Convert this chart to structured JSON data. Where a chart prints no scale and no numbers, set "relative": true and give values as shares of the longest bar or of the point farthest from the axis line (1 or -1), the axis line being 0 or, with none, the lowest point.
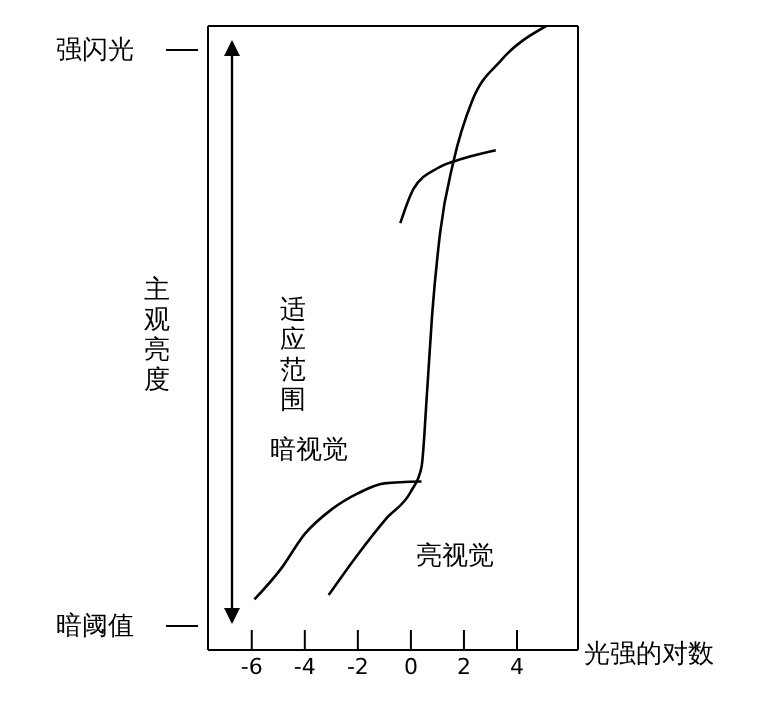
{
  "chart_data": {
    "type": "line",
    "relative": true,
    "xlabel": "光强的对数",
    "ylabel": "主观亮度",
    "xlim": [
      -7.65,
      6.3
    ],
    "xticks": [
      -6,
      -4,
      -2,
      0,
      2,
      4
    ],
    "marker": "none",
    "line_style": "solid",
    "annotations": [
      "强闪光",
      "暗阈值",
      "暗视觉",
      "亮视觉",
      "适应范围"
    ],
    "series": [
      {
        "color": "#000000",
        "x": [
          -3.1,
          -2.0,
          -0.9,
          0,
          0.4,
          0.6,
          0.8,
          1.1,
          1.6,
          2.3,
          3.4,
          5.1
        ],
        "values": [
          0.088,
          0.153,
          0.212,
          0.254,
          0.293,
          0.407,
          0.537,
          0.668,
          0.782,
          0.879,
          0.945,
          1
        ]
      },
      {
        "color": "#000000",
        "x": [
          -5.9,
          -4.9,
          -4.0,
          -3.0,
          -2.0,
          -1.0,
          0.4
        ],
        "values": [
          0.081,
          0.13,
          0.186,
          0.225,
          0.251,
          0.267,
          0.27
        ]
      },
      {
        "color": "#000000",
        "x": [
          -0.4,
          0.1,
          1.0,
          2.0,
          3.2
        ],
        "values": [
          0.684,
          0.739,
          0.772,
          0.788,
          0.801
        ]
      }
    ]
  }
}
